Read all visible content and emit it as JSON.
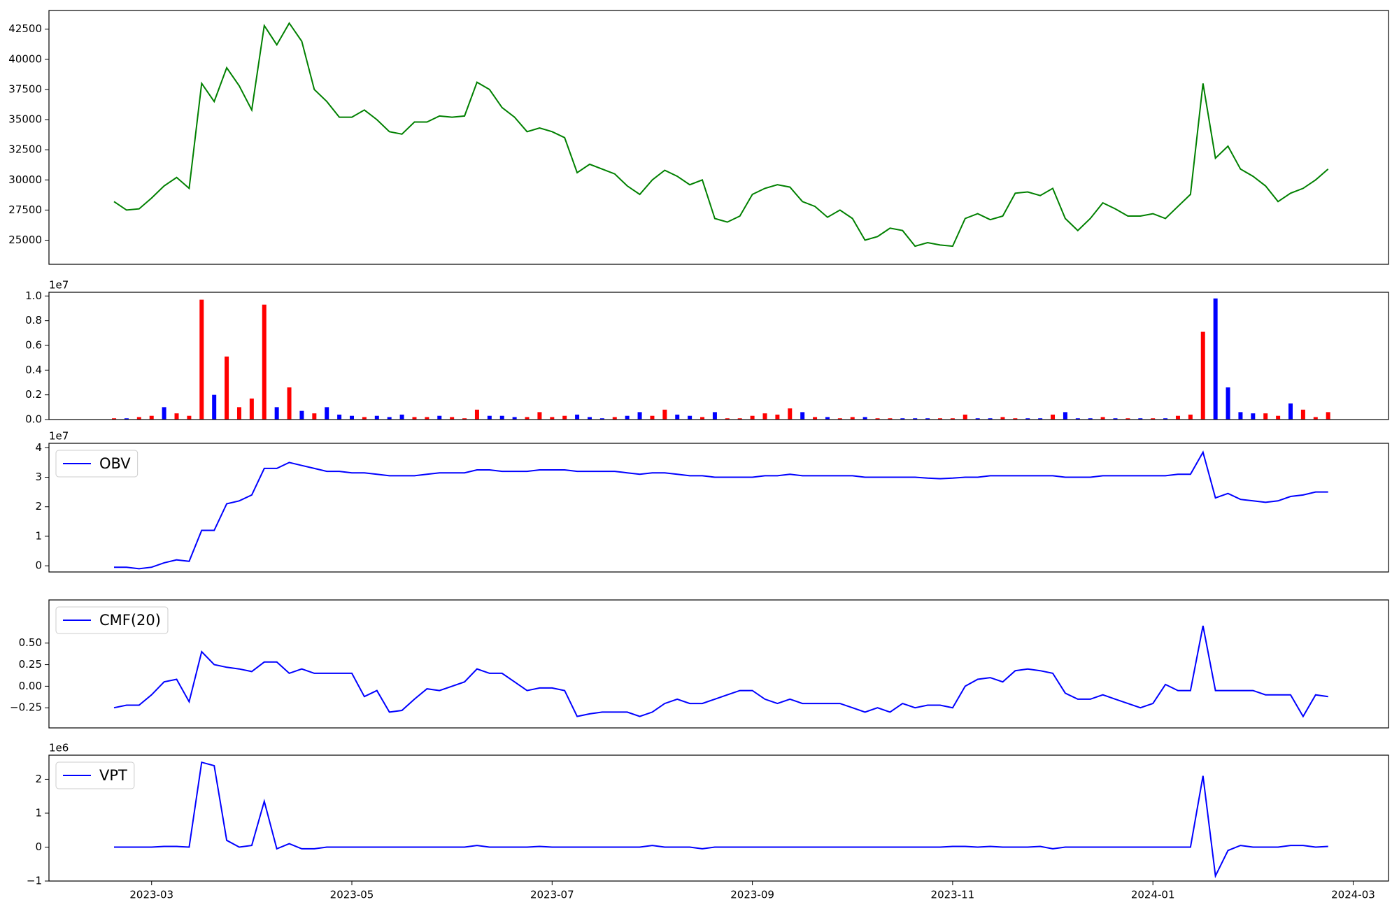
{
  "chart_data": [
    {
      "type": "line",
      "color": "#008000",
      "x": [
        2.625,
        2.75,
        2.875,
        3,
        3.125,
        3.25,
        3.375,
        3.5,
        3.625,
        3.75,
        3.875,
        4,
        4.125,
        4.25,
        4.375,
        4.5,
        4.625,
        4.75,
        4.875,
        5,
        5.125,
        5.25,
        5.375,
        5.5,
        5.625,
        5.75,
        5.875,
        6,
        6.125,
        6.25,
        6.375,
        6.5,
        6.625,
        6.75,
        6.875,
        7,
        7.125,
        7.25,
        7.375,
        7.5,
        7.625,
        7.75,
        7.875,
        8,
        8.125,
        8.25,
        8.375,
        8.5,
        8.625,
        8.75,
        8.875,
        9,
        9.125,
        9.25,
        9.375,
        9.5,
        9.625,
        9.75,
        9.875,
        10,
        10.125,
        10.25,
        10.375,
        10.5,
        10.625,
        10.75,
        10.875,
        11,
        11.125,
        11.25,
        11.375,
        11.5,
        11.625,
        11.75,
        11.875,
        12,
        12.125,
        12.25,
        12.375,
        12.5,
        12.625,
        12.75,
        12.875,
        13,
        13.125,
        13.25,
        13.375,
        13.5,
        13.625,
        13.75,
        13.875,
        14,
        14.125,
        14.25,
        14.375,
        14.5,
        14.625,
        14.75
      ],
      "xlim": [
        1.975,
        15.353
      ],
      "values": [
        28200,
        27500,
        27600,
        28500,
        29500,
        30200,
        29300,
        38000,
        36500,
        39300,
        37800,
        35800,
        42800,
        41200,
        43000,
        41500,
        37500,
        36500,
        35200,
        35200,
        35800,
        35000,
        34000,
        33800,
        34800,
        34800,
        35300,
        35200,
        35300,
        38100,
        37500,
        36000,
        35200,
        34000,
        34300,
        34000,
        33500,
        30600,
        31300,
        30900,
        30500,
        29500,
        28800,
        30000,
        30800,
        30300,
        29600,
        30000,
        26800,
        26500,
        27000,
        28800,
        29300,
        29600,
        29400,
        28200,
        27800,
        26900,
        27500,
        26800,
        25000,
        25300,
        26000,
        25800,
        24500,
        24800,
        24600,
        24500,
        26800,
        27200,
        26700,
        27000,
        28900,
        29000,
        28700,
        29300,
        26800,
        25800,
        26800,
        28100,
        27600,
        27000,
        27000,
        27200,
        26800,
        27800,
        28800,
        38000,
        31800,
        32800,
        30900,
        30300,
        29500,
        28200,
        28900,
        29300,
        30000,
        30900
      ],
      "ylim": [
        23000,
        44050
      ],
      "yticks": [
        25000,
        27500,
        30000,
        32500,
        35000,
        37500,
        40000,
        42500
      ]
    },
    {
      "type": "bar",
      "offset": "1e7",
      "values": [
        0.01,
        0.01,
        0.02,
        0.03,
        0.1,
        0.05,
        0.03,
        0.97,
        0.2,
        0.51,
        0.1,
        0.17,
        0.93,
        0.1,
        0.26,
        0.07,
        0.05,
        0.1,
        0.04,
        0.03,
        0.02,
        0.03,
        0.02,
        0.04,
        0.02,
        0.02,
        0.03,
        0.02,
        0.01,
        0.08,
        0.03,
        0.03,
        0.02,
        0.02,
        0.06,
        0.02,
        0.03,
        0.04,
        0.02,
        0.01,
        0.02,
        0.03,
        0.06,
        0.03,
        0.08,
        0.04,
        0.03,
        0.02,
        0.06,
        0.01,
        0.01,
        0.03,
        0.05,
        0.04,
        0.09,
        0.06,
        0.02,
        0.02,
        0.01,
        0.02,
        0.02,
        0.01,
        0.01,
        0.01,
        0.01,
        0.01,
        0.01,
        0.01,
        0.04,
        0.01,
        0.01,
        0.02,
        0.01,
        0.01,
        0.01,
        0.04,
        0.06,
        0.01,
        0.01,
        0.02,
        0.01,
        0.01,
        0.01,
        0.01,
        0.01,
        0.03,
        0.04,
        0.71,
        0.98,
        0.26,
        0.06,
        0.05,
        0.05,
        0.03,
        0.13,
        0.08,
        0.02,
        0.06
      ],
      "colors": [
        "red",
        "blue",
        "red",
        "red",
        "blue",
        "red",
        "red",
        "red",
        "blue",
        "red",
        "red",
        "red",
        "red",
        "blue",
        "red",
        "blue",
        "red",
        "blue",
        "blue",
        "blue",
        "red",
        "blue",
        "blue",
        "blue",
        "red",
        "red",
        "blue",
        "red",
        "red",
        "red",
        "blue",
        "blue",
        "blue",
        "red",
        "red",
        "red",
        "red",
        "blue",
        "blue",
        "blue",
        "red",
        "blue",
        "blue",
        "red",
        "red",
        "blue",
        "blue",
        "red",
        "blue",
        "red",
        "red",
        "red",
        "red",
        "red",
        "red",
        "blue",
        "red",
        "blue",
        "red",
        "red",
        "blue",
        "red",
        "red",
        "blue",
        "blue",
        "blue",
        "red",
        "red",
        "red",
        "blue",
        "blue",
        "red",
        "red",
        "blue",
        "blue",
        "red",
        "blue",
        "blue",
        "blue",
        "red",
        "blue",
        "red",
        "blue",
        "red",
        "blue",
        "red",
        "red",
        "red",
        "blue",
        "blue",
        "blue",
        "blue",
        "red",
        "red",
        "blue",
        "red",
        "red",
        "red"
      ],
      "ylim": [
        0,
        1.03
      ],
      "yticks": [
        {
          "value": 0,
          "label": "0.0"
        },
        0.2,
        0.4,
        0.6,
        0.8,
        {
          "value": 1,
          "label": "1.0"
        }
      ]
    },
    {
      "type": "line",
      "offset": "1e7",
      "legend": "upper left",
      "series": [
        {
          "name": "OBV",
          "color": "#0000ff",
          "values": [
            -0.05,
            -0.05,
            -0.1,
            -0.05,
            0.1,
            0.2,
            0.15,
            1.2,
            1.2,
            2.1,
            2.2,
            2.4,
            3.3,
            3.3,
            3.5,
            3.4,
            3.3,
            3.2,
            3.2,
            3.15,
            3.15,
            3.1,
            3.05,
            3.05,
            3.05,
            3.1,
            3.15,
            3.15,
            3.15,
            3.25,
            3.25,
            3.2,
            3.2,
            3.2,
            3.25,
            3.25,
            3.25,
            3.2,
            3.2,
            3.2,
            3.2,
            3.15,
            3.1,
            3.15,
            3.15,
            3.1,
            3.05,
            3.05,
            3.0,
            3.0,
            3.0,
            3.0,
            3.05,
            3.05,
            3.1,
            3.05,
            3.05,
            3.05,
            3.05,
            3.05,
            3.0,
            3.0,
            3.0,
            3.0,
            3.0,
            2.97,
            2.95,
            2.97,
            3.0,
            3.0,
            3.05,
            3.05,
            3.05,
            3.05,
            3.05,
            3.05,
            3.0,
            3.0,
            3.0,
            3.05,
            3.05,
            3.05,
            3.05,
            3.05,
            3.05,
            3.1,
            3.1,
            3.85,
            2.3,
            2.45,
            2.25,
            2.2,
            2.15,
            2.2,
            2.35,
            2.4,
            2.5,
            2.5
          ]
        }
      ],
      "ylim": [
        -0.21,
        4.15
      ],
      "yticks": [
        0,
        1,
        2,
        3,
        4
      ]
    },
    {
      "type": "line",
      "legend": "upper left",
      "series": [
        {
          "name": "CMF(20)",
          "color": "#0000ff",
          "values": [
            -0.25,
            -0.22,
            -0.22,
            -0.1,
            0.05,
            0.08,
            -0.18,
            0.4,
            0.25,
            0.22,
            0.2,
            0.17,
            0.28,
            0.28,
            0.15,
            0.2,
            0.15,
            0.15,
            0.15,
            0.15,
            -0.12,
            -0.05,
            -0.3,
            -0.28,
            -0.15,
            -0.03,
            -0.05,
            0,
            0.05,
            0.2,
            0.15,
            0.15,
            0.05,
            -0.05,
            -0.02,
            -0.02,
            -0.05,
            -0.35,
            -0.32,
            -0.3,
            -0.3,
            -0.3,
            -0.35,
            -0.3,
            -0.2,
            -0.15,
            -0.2,
            -0.2,
            -0.15,
            -0.1,
            -0.05,
            -0.05,
            -0.15,
            -0.2,
            -0.15,
            -0.2,
            -0.2,
            -0.2,
            -0.2,
            -0.25,
            -0.3,
            -0.25,
            -0.3,
            -0.2,
            -0.25,
            -0.22,
            -0.22,
            -0.25,
            0,
            0.08,
            0.1,
            0.05,
            0.18,
            0.2,
            0.18,
            0.15,
            -0.08,
            -0.15,
            -0.15,
            -0.1,
            -0.15,
            -0.2,
            -0.25,
            -0.2,
            0.02,
            -0.05,
            -0.05,
            0.7,
            -0.05,
            -0.05,
            -0.05,
            -0.05,
            -0.1,
            -0.1,
            -0.1,
            -0.35,
            -0.1,
            -0.12
          ]
        }
      ],
      "ylim": [
        -0.483,
        1.0
      ],
      "yticks": [
        {
          "value": -0.25,
          "label": "−0.25"
        },
        {
          "value": 0,
          "label": "0.00"
        },
        0.25,
        {
          "value": 0.5,
          "label": "0.50"
        }
      ]
    },
    {
      "type": "line",
      "offset": "1e6",
      "legend": "upper left",
      "series": [
        {
          "name": "VPT",
          "color": "#0000ff",
          "values": [
            0,
            0,
            0,
            0,
            0.02,
            0.02,
            0,
            2.5,
            2.4,
            0.2,
            0,
            0.05,
            1.35,
            -0.05,
            0.1,
            -0.05,
            -0.05,
            0,
            0,
            0,
            0,
            0,
            0,
            0,
            0,
            0,
            0,
            0,
            0,
            0.05,
            0,
            0,
            0,
            0,
            0.02,
            0,
            0,
            0,
            0,
            0,
            0,
            0,
            0,
            0.05,
            0,
            0,
            0,
            -0.05,
            0,
            0,
            0,
            0,
            0,
            0,
            0,
            0,
            0,
            0,
            0,
            0,
            0,
            0,
            0,
            0,
            0,
            0,
            0,
            0.02,
            0.02,
            0,
            0.02,
            0,
            0,
            0,
            0.02,
            -0.05,
            0,
            0,
            0,
            0,
            0,
            0,
            0,
            0,
            0,
            0,
            0,
            2.1,
            -0.85,
            -0.1,
            0.05,
            0,
            0,
            0,
            0.05,
            0.05,
            0,
            0.02
          ]
        }
      ],
      "ylim": [
        -1,
        2.71
      ],
      "yticks": [
        {
          "value": -1,
          "label": "−1"
        },
        0,
        1,
        2
      ],
      "xticks": [
        {
          "value": 3,
          "label": "2023-03"
        },
        {
          "value": 5,
          "label": "2023-05"
        },
        {
          "value": 7,
          "label": "2023-07"
        },
        {
          "value": 9,
          "label": "2023-09"
        },
        {
          "value": 11,
          "label": "2023-11"
        },
        {
          "value": 13,
          "label": "2024-01"
        },
        {
          "value": 15,
          "label": "2024-03"
        }
      ]
    }
  ]
}
